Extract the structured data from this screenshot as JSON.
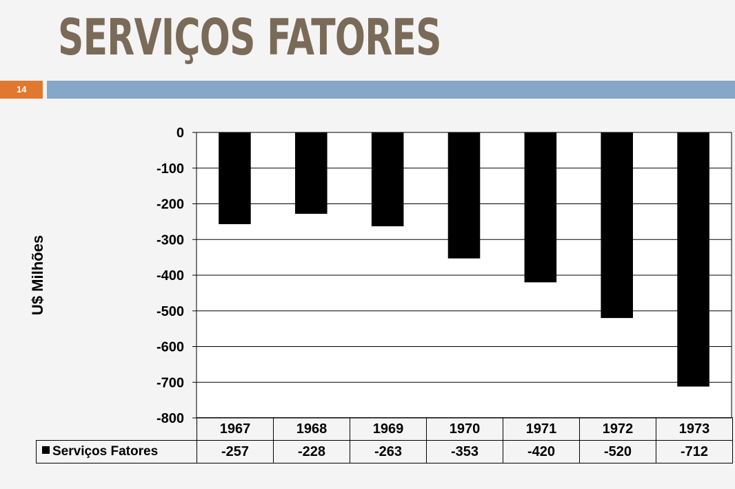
{
  "slide": {
    "title": "SERVIÇOS FATORES",
    "number": "14"
  },
  "colors": {
    "title": "#7a6a58",
    "accent_orange": "#e07830",
    "accent_blue": "#86a7c7",
    "bars": "#000000"
  },
  "chart_data": {
    "type": "bar",
    "categories": [
      "1967",
      "1968",
      "1969",
      "1970",
      "1971",
      "1972",
      "1973"
    ],
    "series": [
      {
        "name": "Serviços Fatores",
        "values": [
          -257,
          -228,
          -263,
          -353,
          -420,
          -520,
          -712
        ]
      }
    ],
    "ylabel": "U$ Milhões",
    "ylim": [
      -800,
      0
    ],
    "yticks": [
      "0",
      "-100",
      "-200",
      "-300",
      "-400",
      "-500",
      "-600",
      "-700",
      "-800"
    ],
    "grid": true,
    "data_table": true,
    "table_values": [
      "-257",
      "-228",
      "-263",
      "-353",
      "-420",
      "-520",
      "-712"
    ]
  }
}
